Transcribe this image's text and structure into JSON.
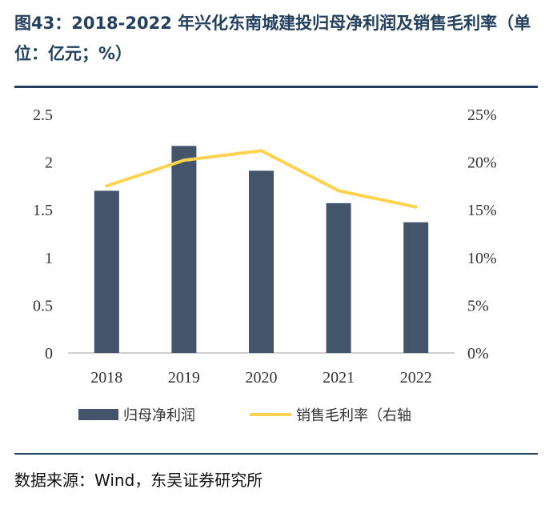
{
  "header": {
    "title": "图43：2018-2022 年兴化东南城建投归母净利润及销售毛利率（单位：亿元；%）"
  },
  "footer": {
    "source": "数据来源：Wind，东吴证券研究所"
  },
  "colors": {
    "bar": "#44546a",
    "line": "#ffd34f",
    "accent": "#24405f"
  },
  "chart_data": {
    "type": "bar",
    "categories": [
      "2018",
      "2019",
      "2020",
      "2021",
      "2022"
    ],
    "series": [
      {
        "name": "归母净利润",
        "type": "bar",
        "axis": "left",
        "values": [
          1.7,
          2.17,
          1.91,
          1.57,
          1.37
        ]
      },
      {
        "name": "销售毛利率（右轴",
        "type": "line",
        "axis": "right",
        "values": [
          17.5,
          20.2,
          21.2,
          17.0,
          15.3
        ]
      }
    ],
    "y_left": {
      "ylim": [
        0,
        2.5
      ],
      "ticks": [
        "2.5",
        "2",
        "1.5",
        "1",
        "0.5",
        "0"
      ]
    },
    "y_right": {
      "ylim": [
        0,
        25
      ],
      "ticks": [
        "25%",
        "20%",
        "15%",
        "10%",
        "5%",
        "0%"
      ]
    },
    "legend_position": "bottom",
    "grid": false
  }
}
